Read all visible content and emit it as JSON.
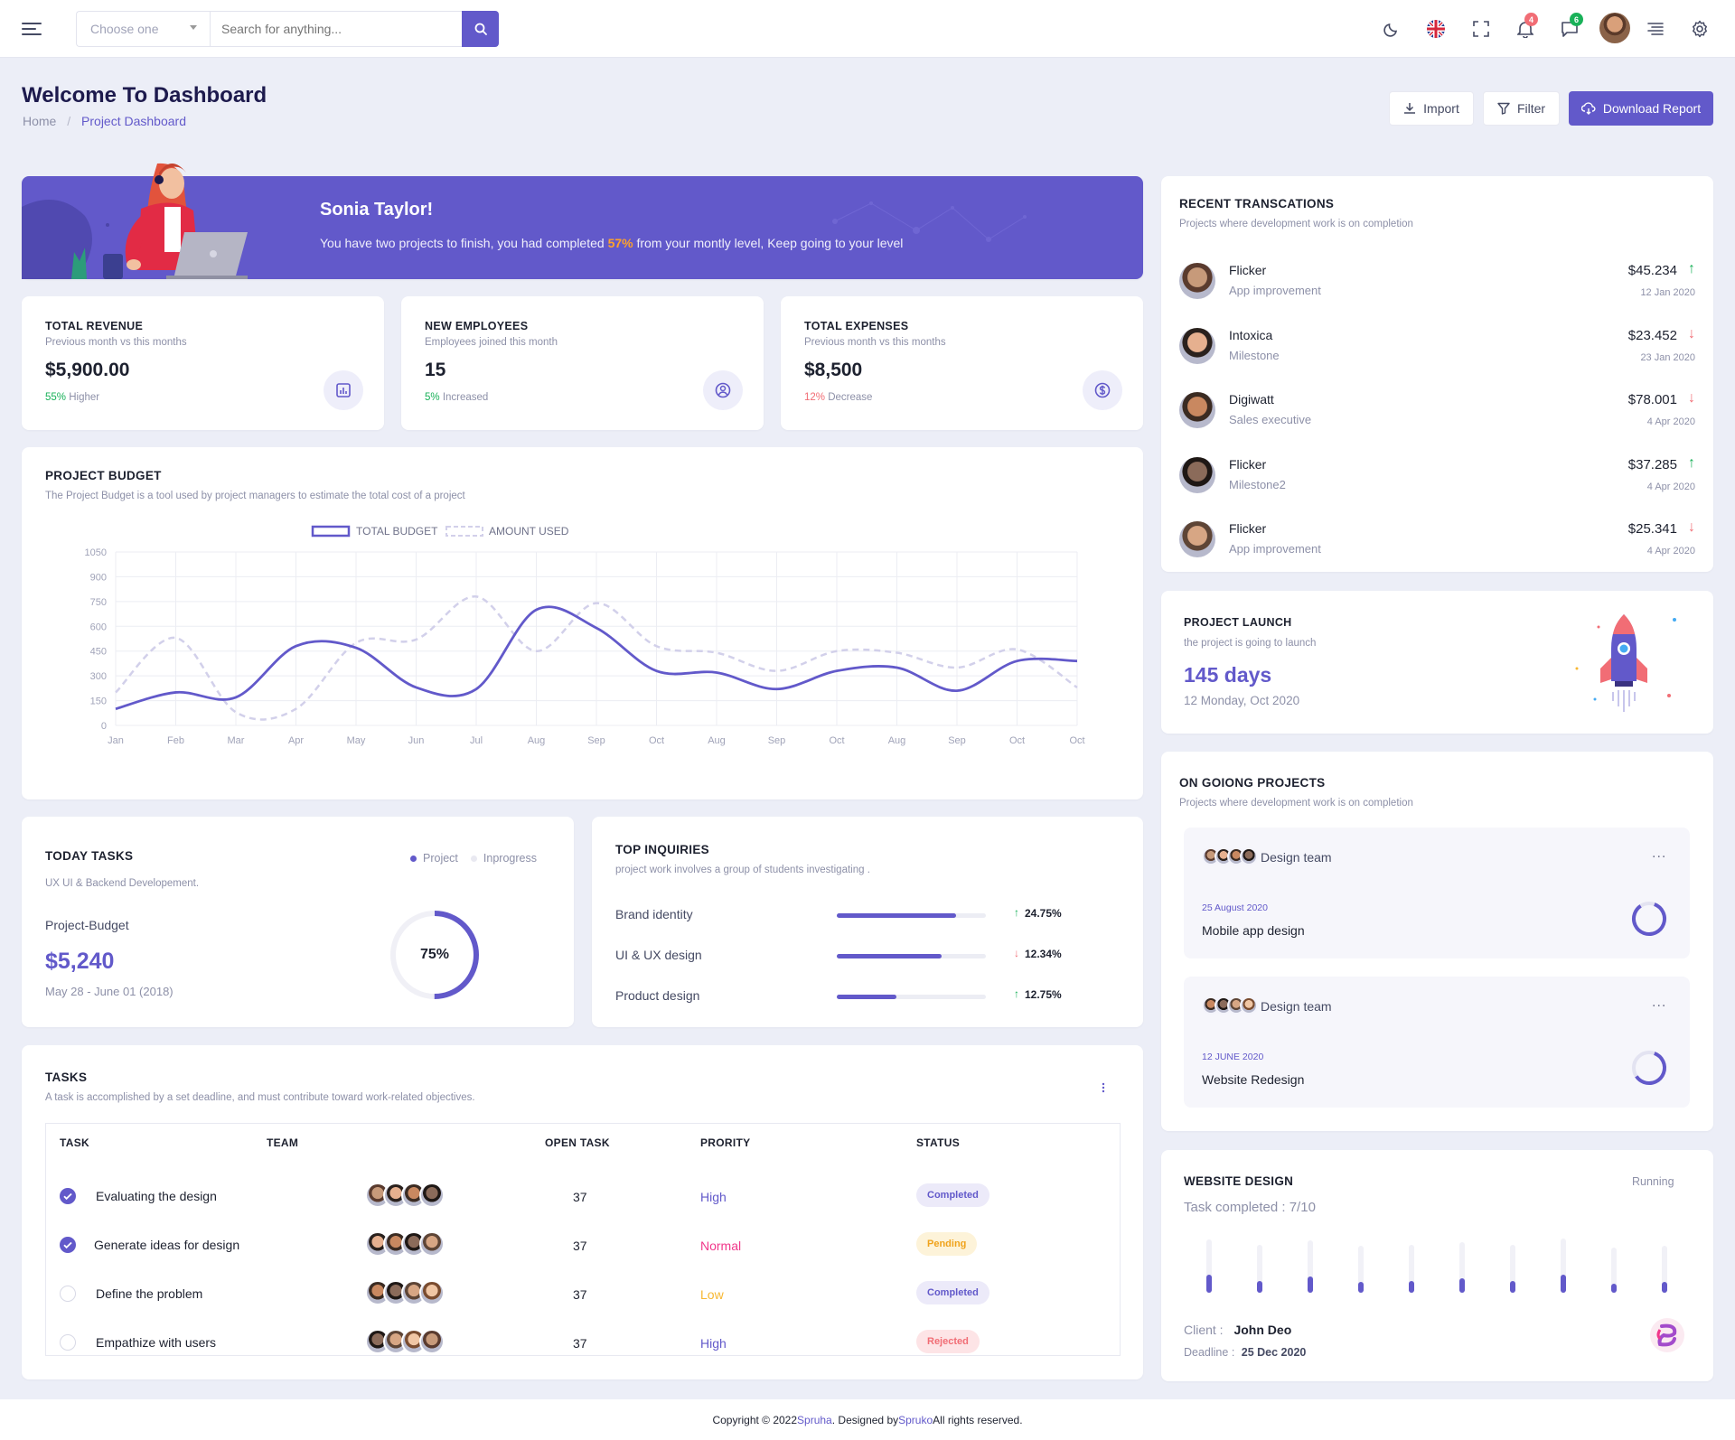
{
  "header": {
    "select_placeholder": "Choose one",
    "search_placeholder": "Search for anything...",
    "notif_count": "4",
    "msg_count": "6"
  },
  "page": {
    "title": "Welcome To Dashboard",
    "breadcrumb_home": "Home",
    "breadcrumb_sep": "/",
    "breadcrumb_current": "Project Dashboard",
    "import_label": "Import",
    "filter_label": "Filter",
    "download_label": "Download Report"
  },
  "banner": {
    "name": "Sonia Taylor!",
    "text_before": "You have two projects to finish, you had completed ",
    "highlight": "57%",
    "text_after": " from your montly level, Keep going to your level"
  },
  "stats": [
    {
      "title": "TOTAL REVENUE",
      "subtitle": "Previous month vs this months",
      "value": "$5,900.00",
      "pct": "55%",
      "note": " Higher",
      "color": "#19b159"
    },
    {
      "title": "NEW EMPLOYEES",
      "subtitle": "Employees joined this month",
      "value": "15",
      "pct": "5%",
      "note": " Increased",
      "color": "#19b159"
    },
    {
      "title": "TOTAL EXPENSES",
      "subtitle": "Previous month vs this months",
      "value": "$8,500",
      "pct": "12%",
      "note": " Decrease",
      "color": "#f16d75"
    }
  ],
  "budget": {
    "title": "PROJECT BUDGET",
    "subtitle": "The Project Budget is a tool used by project managers to estimate the total cost of a project"
  },
  "chart_data": {
    "type": "line",
    "categories": [
      "Jan",
      "Feb",
      "Mar",
      "Apr",
      "May",
      "Jun",
      "Jul",
      "Aug",
      "Sep",
      "Oct",
      "Aug",
      "Sep",
      "Oct",
      "Aug",
      "Sep",
      "Oct",
      "Oct"
    ],
    "y_ticks": [
      "1050",
      "900",
      "750",
      "600",
      "450",
      "300",
      "150",
      "0"
    ],
    "ylim": [
      0,
      1050
    ],
    "legend_position": "top",
    "grid": true,
    "series": [
      {
        "name": "TOTAL BUDGET",
        "style": "solid",
        "color": "#6259ca",
        "values": [
          100,
          200,
          170,
          480,
          470,
          230,
          220,
          700,
          590,
          330,
          320,
          220,
          330,
          350,
          210,
          390,
          390
        ]
      },
      {
        "name": "AMOUNT USED",
        "style": "dashed",
        "color": "#d2d0ea",
        "values": [
          200,
          530,
          80,
          100,
          500,
          520,
          780,
          450,
          740,
          480,
          440,
          330,
          450,
          440,
          350,
          460,
          230
        ]
      }
    ]
  },
  "today_tasks": {
    "title": "TODAY TASKS",
    "subtitle": "UX UI & Backend Developement.",
    "legend_project": "Project",
    "legend_inprogress": "Inprogress",
    "label": "Project-Budget",
    "value": "$5,240",
    "date": "May 28 - June 01 (2018)",
    "percent_label": "75%",
    "percent": 0.75
  },
  "inquiries": {
    "title": "TOP INQUIRIES",
    "subtitle": "project work involves a group of students investigating .",
    "items": [
      {
        "label": "Brand identity",
        "fill": 0.8,
        "value": "24.75%",
        "dir": "up"
      },
      {
        "label": "UI & UX design",
        "fill": 0.7,
        "value": "12.34%",
        "dir": "down"
      },
      {
        "label": "Product design",
        "fill": 0.4,
        "value": "12.75%",
        "dir": "up"
      }
    ]
  },
  "tasks": {
    "title": "TASKS",
    "subtitle": "A task is accomplished by a set deadline, and must contribute toward work-related objectives.",
    "col_task": "TASK",
    "col_team": "TEAM",
    "col_open": "OPEN TASK",
    "col_priority": "PRORITY",
    "col_status": "STATUS",
    "rows": [
      {
        "name": "Evaluating the design",
        "done": true,
        "open": "37",
        "priority": "High",
        "pcolor": "#6259ca",
        "status": "Completed",
        "sbg": "#eceaf9",
        "scolor": "#6259ca"
      },
      {
        "name": "Generate ideas for design",
        "done": true,
        "open": "37",
        "priority": "Normal",
        "pcolor": "#f1388b",
        "status": "Pending",
        "sbg": "#fdf3d9",
        "scolor": "#f0a31c"
      },
      {
        "name": "Define the problem",
        "done": false,
        "open": "37",
        "priority": "Low",
        "pcolor": "#f7b731",
        "status": "Completed",
        "sbg": "#eceaf9",
        "scolor": "#6259ca"
      },
      {
        "name": "Empathize with users",
        "done": false,
        "open": "37",
        "priority": "High",
        "pcolor": "#6259ca",
        "status": "Rejected",
        "sbg": "#fde4e6",
        "scolor": "#f16d75"
      }
    ]
  },
  "transactions": {
    "title": "RECENT TRANSCATIONS",
    "subtitle": "Projects where development work is on completion",
    "items": [
      {
        "name": "Flicker",
        "desc": "App improvement",
        "amount": "$45.234",
        "date": "12 Jan 2020",
        "dir": "up"
      },
      {
        "name": "Intoxica",
        "desc": "Milestone",
        "amount": "$23.452",
        "date": "23 Jan 2020",
        "dir": "down"
      },
      {
        "name": "Digiwatt",
        "desc": "Sales executive",
        "amount": "$78.001",
        "date": "4 Apr 2020",
        "dir": "down"
      },
      {
        "name": "Flicker",
        "desc": "Milestone2",
        "amount": "$37.285",
        "date": "4 Apr 2020",
        "dir": "up"
      },
      {
        "name": "Flicker",
        "desc": "App improvement",
        "amount": "$25.341",
        "date": "4 Apr 2020",
        "dir": "down"
      }
    ]
  },
  "launch": {
    "title": "PROJECT LAUNCH",
    "subtitle": "the project is going to launch",
    "value": "145 days",
    "date": "12 Monday, Oct 2020"
  },
  "ongoing": {
    "title": "ON GOIONG PROJECTS",
    "subtitle": "Projects where development work is on completion",
    "items": [
      {
        "team": "Design team",
        "date": "25 August 2020",
        "name": "Mobile app design",
        "more": "...",
        "progress": 0.85
      },
      {
        "team": "Design team",
        "date": "12 JUNE 2020",
        "name": "Website Redesign",
        "more": "...",
        "progress": 0.6
      }
    ]
  },
  "website": {
    "title": "WEBSITE DESIGN",
    "status": "Running",
    "completed": "Task completed : 7/10",
    "bars": [
      0.6,
      0.4,
      0.55,
      0.35,
      0.4,
      0.5,
      0.4,
      0.62,
      0.3,
      0.35
    ],
    "client_label": "Client :",
    "client": "John Deo",
    "deadline_label": "Deadline :",
    "deadline": "25 Dec 2020"
  },
  "footer": {
    "prefix": "Copyright © 2022 ",
    "brand": "Spruha",
    "mid": ". Designed by ",
    "designer": "Spruko",
    "suffix": " All rights reserved."
  }
}
